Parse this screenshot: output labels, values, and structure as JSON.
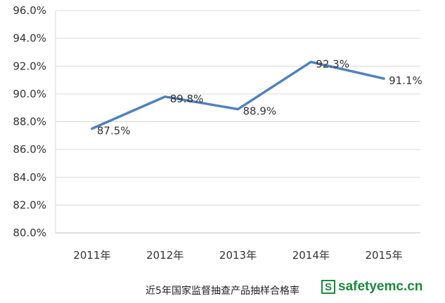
{
  "chart_data": {
    "type": "line",
    "categories": [
      "2011年",
      "2012年",
      "2013年",
      "2014年",
      "2015年"
    ],
    "series": [
      {
        "values": [
          87.5,
          89.8,
          88.9,
          92.3,
          91.1
        ]
      }
    ],
    "data_labels": [
      "87.5%",
      "89.8%",
      "88.9%",
      "92.3%",
      "91.1%"
    ],
    "yticks": [
      "80.0%",
      "82.0%",
      "84.0%",
      "86.0%",
      "88.0%",
      "90.0%",
      "92.0%",
      "94.0%",
      "96.0%"
    ],
    "ylim": [
      80,
      96
    ],
    "grid": true,
    "line_color": "#4f81bd",
    "grid_color": "#d9d9d9"
  },
  "caption": "近5年国家监督抽查产品抽样合格率",
  "watermark": {
    "icon_letter": "S",
    "text": "safetyemc.cn"
  }
}
